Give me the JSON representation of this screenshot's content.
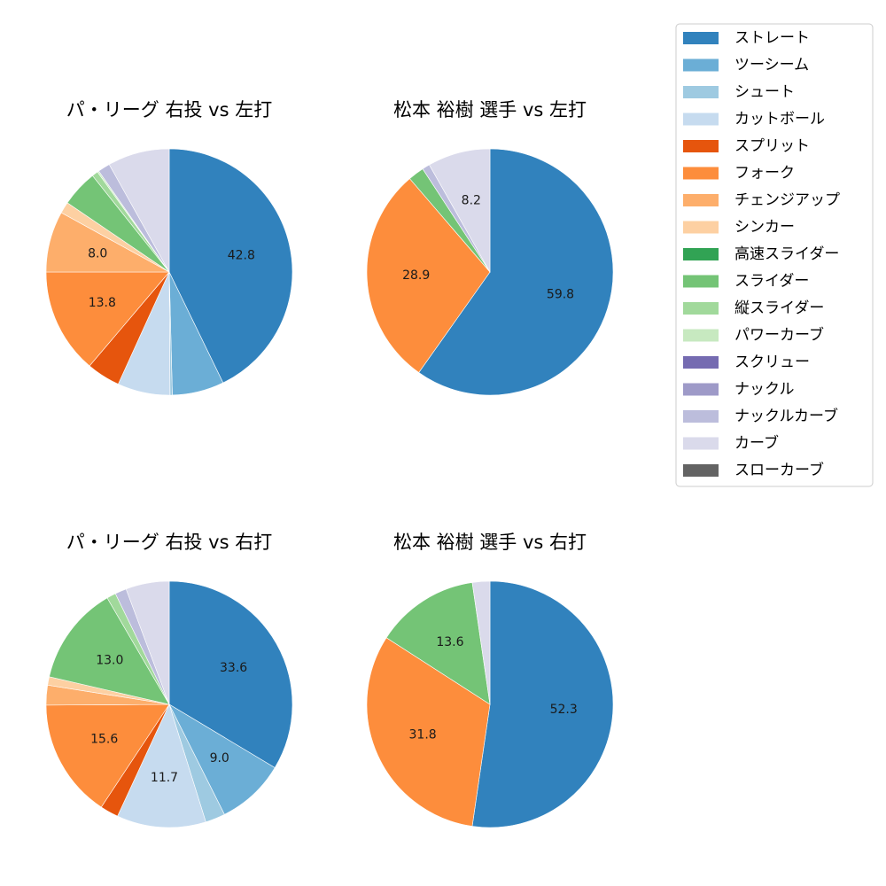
{
  "legend": {
    "position": "top-right",
    "items": [
      {
        "label": "ストレート",
        "color": "#3182bd"
      },
      {
        "label": "ツーシーム",
        "color": "#6baed6"
      },
      {
        "label": "シュート",
        "color": "#9ecae1"
      },
      {
        "label": "カットボール",
        "color": "#c6dbef"
      },
      {
        "label": "スプリット",
        "color": "#e6550d"
      },
      {
        "label": "フォーク",
        "color": "#fd8d3c"
      },
      {
        "label": "チェンジアップ",
        "color": "#fdae6b"
      },
      {
        "label": "シンカー",
        "color": "#fdd0a2"
      },
      {
        "label": "高速スライダー",
        "color": "#31a354"
      },
      {
        "label": "スライダー",
        "color": "#74c476"
      },
      {
        "label": "縦スライダー",
        "color": "#a1d99b"
      },
      {
        "label": "パワーカーブ",
        "color": "#c7e9c0"
      },
      {
        "label": "スクリュー",
        "color": "#756bb1"
      },
      {
        "label": "ナックル",
        "color": "#9e9ac8"
      },
      {
        "label": "ナックルカーブ",
        "color": "#bcbddc"
      },
      {
        "label": "カーブ",
        "color": "#dadaeb"
      },
      {
        "label": "スローカーブ",
        "color": "#636363"
      }
    ]
  },
  "chart_data": [
    {
      "type": "pie",
      "title": "パ・リーグ 右投 vs 左打",
      "slices": [
        {
          "category": "ストレート",
          "value": 42.8,
          "label": "42.8"
        },
        {
          "category": "ツーシーム",
          "value": 6.8,
          "label": ""
        },
        {
          "category": "シュート",
          "value": 0.3,
          "label": ""
        },
        {
          "category": "カットボール",
          "value": 6.9,
          "label": ""
        },
        {
          "category": "スプリット",
          "value": 4.4,
          "label": ""
        },
        {
          "category": "フォーク",
          "value": 13.8,
          "label": "13.8"
        },
        {
          "category": "チェンジアップ",
          "value": 8.0,
          "label": "8.0"
        },
        {
          "category": "シンカー",
          "value": 1.5,
          "label": ""
        },
        {
          "category": "スライダー",
          "value": 4.8,
          "label": ""
        },
        {
          "category": "縦スライダー",
          "value": 0.8,
          "label": ""
        },
        {
          "category": "パワーカーブ",
          "value": 0.2,
          "label": ""
        },
        {
          "category": "ナックルカーブ",
          "value": 1.6,
          "label": ""
        },
        {
          "category": "カーブ",
          "value": 8.1,
          "label": ""
        }
      ]
    },
    {
      "type": "pie",
      "title": "松本 裕樹 選手 vs 左打",
      "slices": [
        {
          "category": "ストレート",
          "value": 59.8,
          "label": "59.8"
        },
        {
          "category": "フォーク",
          "value": 28.9,
          "label": "28.9"
        },
        {
          "category": "スライダー",
          "value": 2.1,
          "label": ""
        },
        {
          "category": "ナックルカーブ",
          "value": 1.0,
          "label": ""
        },
        {
          "category": "カーブ",
          "value": 8.2,
          "label": "8.2"
        }
      ]
    },
    {
      "type": "pie",
      "title": "パ・リーグ 右投 vs 右打",
      "slices": [
        {
          "category": "ストレート",
          "value": 33.6,
          "label": "33.6"
        },
        {
          "category": "ツーシーム",
          "value": 9.0,
          "label": "9.0"
        },
        {
          "category": "シュート",
          "value": 2.6,
          "label": ""
        },
        {
          "category": "カットボール",
          "value": 11.7,
          "label": "11.7"
        },
        {
          "category": "スプリット",
          "value": 2.4,
          "label": ""
        },
        {
          "category": "フォーク",
          "value": 15.6,
          "label": "15.6"
        },
        {
          "category": "チェンジアップ",
          "value": 2.6,
          "label": ""
        },
        {
          "category": "シンカー",
          "value": 1.1,
          "label": ""
        },
        {
          "category": "スライダー",
          "value": 13.0,
          "label": "13.0"
        },
        {
          "category": "縦スライダー",
          "value": 1.2,
          "label": ""
        },
        {
          "category": "ナックルカーブ",
          "value": 1.5,
          "label": ""
        },
        {
          "category": "カーブ",
          "value": 5.7,
          "label": ""
        }
      ]
    },
    {
      "type": "pie",
      "title": "松本 裕樹 選手 vs 右打",
      "slices": [
        {
          "category": "ストレート",
          "value": 52.3,
          "label": "52.3"
        },
        {
          "category": "フォーク",
          "value": 31.8,
          "label": "31.8"
        },
        {
          "category": "スライダー",
          "value": 13.6,
          "label": "13.6"
        },
        {
          "category": "カーブ",
          "value": 2.3,
          "label": ""
        }
      ]
    }
  ]
}
